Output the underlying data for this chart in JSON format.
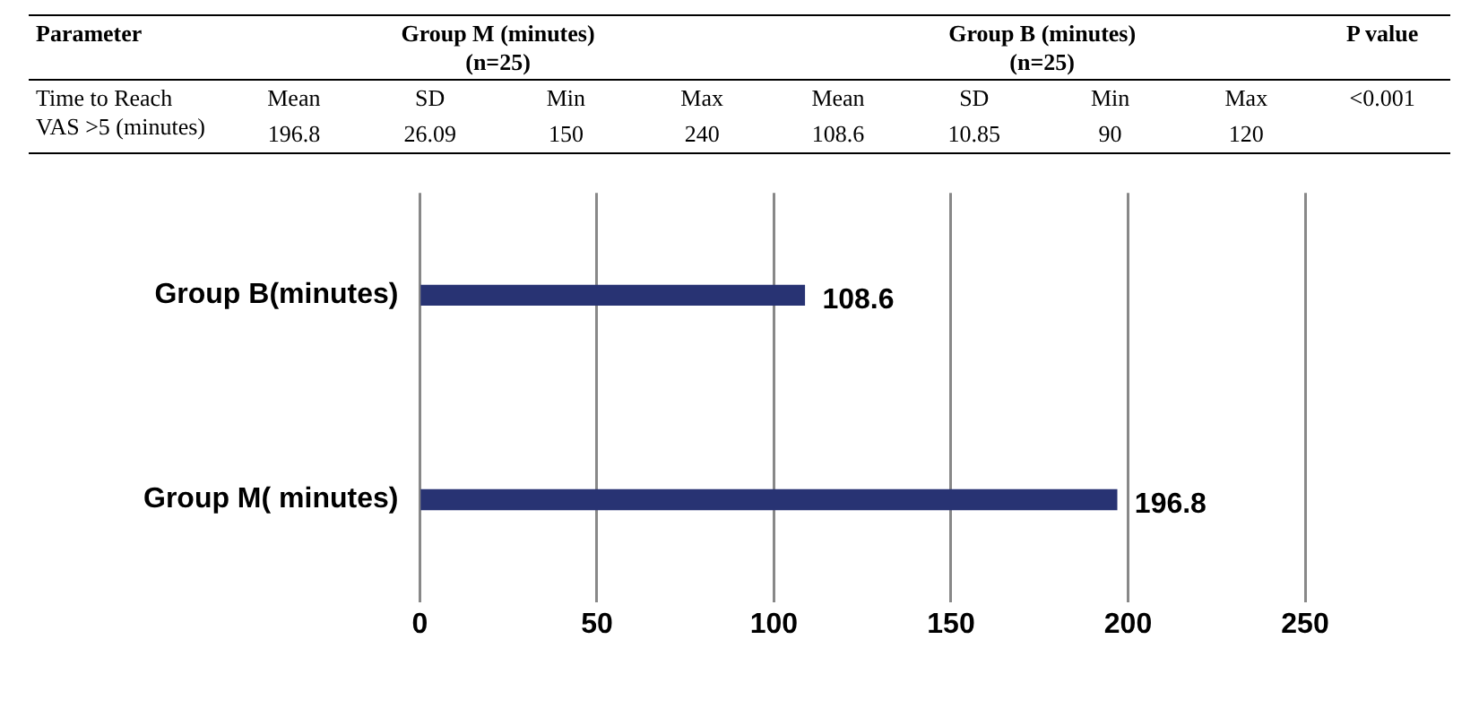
{
  "chart_data": [
    {
      "type": "other",
      "annotations": [
        "Parameter",
        "Group M (minutes) (n=25)",
        "Group B (minutes) (n=25)",
        "P value",
        "Time to Reach VAS >5 (minutes)",
        "Mean",
        "SD",
        "Min",
        "Max",
        "Mean",
        "SD",
        "Min",
        "Max",
        "<0.001",
        "196.8",
        "26.09",
        "150",
        "240",
        "108.6",
        "10.85",
        "90",
        "120"
      ]
    },
    {
      "type": "bar",
      "orientation": "horizontal",
      "categories": [
        "Group B(minutes)",
        "Group M( minutes)"
      ],
      "values": [
        108.6,
        196.8
      ],
      "color": "#283373",
      "xlim": [
        0,
        250
      ],
      "xticks": [
        0,
        50,
        100,
        150,
        200,
        250
      ],
      "grid": "x",
      "data_labels": true
    }
  ]
}
